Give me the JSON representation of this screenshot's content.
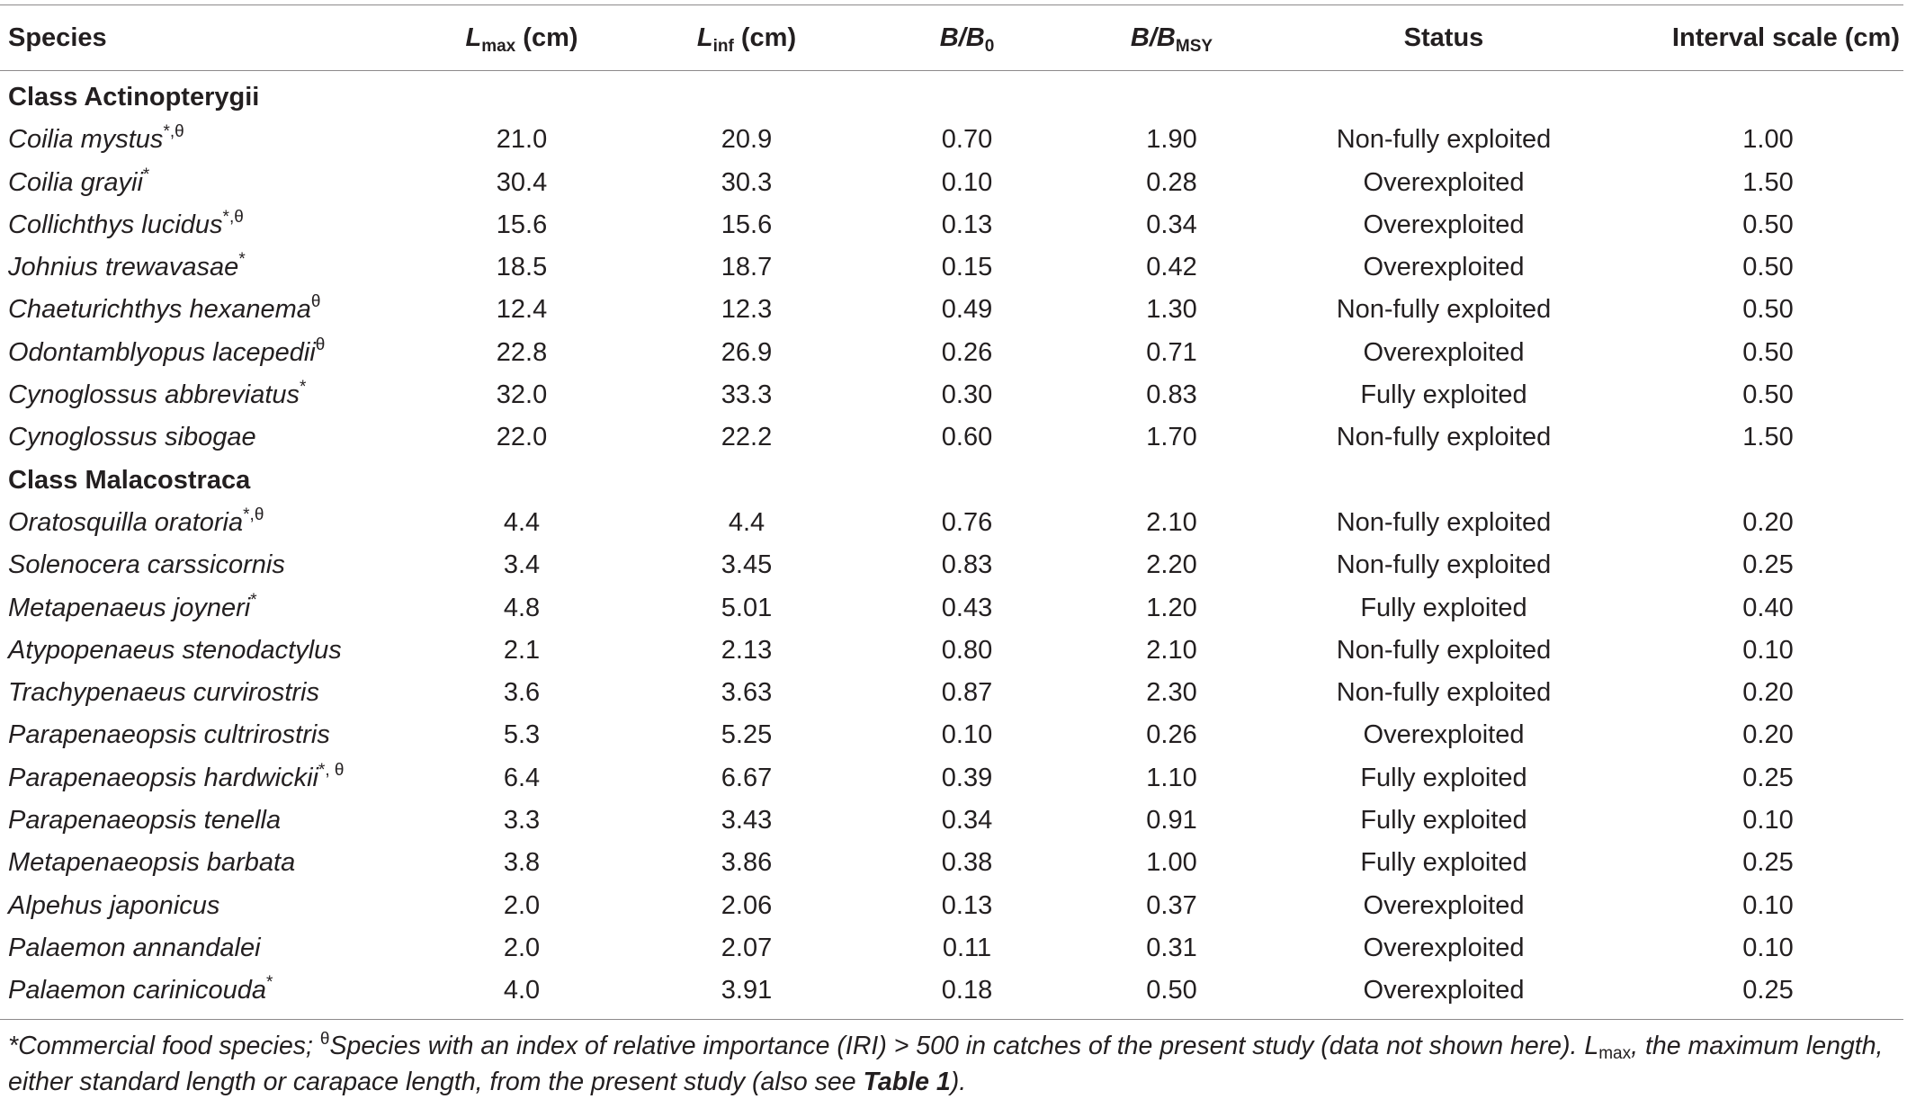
{
  "table": {
    "headers": {
      "species": "Species",
      "lmax_main": "L",
      "lmax_sub": "max",
      "lmax_unit": "(cm)",
      "linf_main": "L",
      "linf_sub": "inf",
      "linf_unit": "(cm)",
      "bb0_main": "B/B",
      "bb0_sub": "0",
      "bbmsy_main": "B/B",
      "bbmsy_sub": "MSY",
      "status": "Status",
      "interval": "Interval scale (cm)"
    },
    "groups": [
      {
        "label": "Class Actinopterygii",
        "rows": [
          {
            "species": "Coilia mystus",
            "mark": "*,θ",
            "lmax": "21.0",
            "linf": "20.9",
            "bb0": "0.70",
            "bbmsy": "1.90",
            "status": "Non-fully exploited",
            "interval": "1.00"
          },
          {
            "species": "Coilia grayii",
            "mark": "*",
            "lmax": "30.4",
            "linf": "30.3",
            "bb0": "0.10",
            "bbmsy": "0.28",
            "status": "Overexploited",
            "interval": "1.50"
          },
          {
            "species": "Collichthys lucidus",
            "mark": "*,θ",
            "lmax": "15.6",
            "linf": "15.6",
            "bb0": "0.13",
            "bbmsy": "0.34",
            "status": "Overexploited",
            "interval": "0.50"
          },
          {
            "species": "Johnius trewavasae",
            "mark": "*",
            "lmax": "18.5",
            "linf": "18.7",
            "bb0": "0.15",
            "bbmsy": "0.42",
            "status": "Overexploited",
            "interval": "0.50"
          },
          {
            "species": "Chaeturichthys hexanema",
            "mark": "θ",
            "lmax": "12.4",
            "linf": "12.3",
            "bb0": "0.49",
            "bbmsy": "1.30",
            "status": "Non-fully exploited",
            "interval": "0.50"
          },
          {
            "species": "Odontamblyopus lacepedii",
            "mark": "θ",
            "lmax": "22.8",
            "linf": "26.9",
            "bb0": "0.26",
            "bbmsy": "0.71",
            "status": "Overexploited",
            "interval": "0.50"
          },
          {
            "species": "Cynoglossus abbreviatus",
            "mark": "*",
            "lmax": "32.0",
            "linf": "33.3",
            "bb0": "0.30",
            "bbmsy": "0.83",
            "status": "Fully exploited",
            "interval": "0.50"
          },
          {
            "species": "Cynoglossus sibogae",
            "mark": "",
            "lmax": "22.0",
            "linf": "22.2",
            "bb0": "0.60",
            "bbmsy": "1.70",
            "status": "Non-fully exploited",
            "interval": "1.50"
          }
        ]
      },
      {
        "label": "Class Malacostraca",
        "rows": [
          {
            "species": "Oratosquilla oratoria",
            "mark": "*,θ",
            "lmax": "4.4",
            "linf": "4.4",
            "bb0": "0.76",
            "bbmsy": "2.10",
            "status": "Non-fully exploited",
            "interval": "0.20"
          },
          {
            "species": "Solenocera carssicornis",
            "mark": "",
            "lmax": "3.4",
            "linf": "3.45",
            "bb0": "0.83",
            "bbmsy": "2.20",
            "status": "Non-fully exploited",
            "interval": "0.25"
          },
          {
            "species": "Metapenaeus joyneri",
            "mark": "*",
            "lmax": "4.8",
            "linf": "5.01",
            "bb0": "0.43",
            "bbmsy": "1.20",
            "status": "Fully exploited",
            "interval": "0.40"
          },
          {
            "species": "Atypopenaeus stenodactylus",
            "mark": "",
            "lmax": "2.1",
            "linf": "2.13",
            "bb0": "0.80",
            "bbmsy": "2.10",
            "status": "Non-fully exploited",
            "interval": "0.10"
          },
          {
            "species": "Trachypenaeus curvirostris",
            "mark": "",
            "lmax": "3.6",
            "linf": "3.63",
            "bb0": "0.87",
            "bbmsy": "2.30",
            "status": "Non-fully exploited",
            "interval": "0.20"
          },
          {
            "species": "Parapenaeopsis cultrirostris",
            "mark": "",
            "lmax": "5.3",
            "linf": "5.25",
            "bb0": "0.10",
            "bbmsy": "0.26",
            "status": "Overexploited",
            "interval": "0.20"
          },
          {
            "species": "Parapenaeopsis hardwickii",
            "mark": "*, θ",
            "lmax": "6.4",
            "linf": "6.67",
            "bb0": "0.39",
            "bbmsy": "1.10",
            "status": "Fully exploited",
            "interval": "0.25"
          },
          {
            "species": "Parapenaeopsis tenella",
            "mark": "",
            "lmax": "3.3",
            "linf": "3.43",
            "bb0": "0.34",
            "bbmsy": "0.91",
            "status": "Fully exploited",
            "interval": "0.10"
          },
          {
            "species": "Metapenaeopsis barbata",
            "mark": "",
            "lmax": "3.8",
            "linf": "3.86",
            "bb0": "0.38",
            "bbmsy": "1.00",
            "status": "Fully exploited",
            "interval": "0.25"
          },
          {
            "species": "Alpehus japonicus",
            "mark": "",
            "lmax": "2.0",
            "linf": "2.06",
            "bb0": "0.13",
            "bbmsy": "0.37",
            "status": "Overexploited",
            "interval": "0.10"
          },
          {
            "species": "Palaemon annandalei",
            "mark": "",
            "lmax": "2.0",
            "linf": "2.07",
            "bb0": "0.11",
            "bbmsy": "0.31",
            "status": "Overexploited",
            "interval": "0.10"
          },
          {
            "species": "Palaemon carinicouda",
            "mark": "*",
            "lmax": "4.0",
            "linf": "3.91",
            "bb0": "0.18",
            "bbmsy": "0.50",
            "status": "Overexploited",
            "interval": "0.25"
          }
        ]
      }
    ]
  },
  "footnote": {
    "p1": "*Commercial food species; ",
    "theta": "θ",
    "p2": "Species with an index of relative importance (IRI) > 500 in catches of the present study (data not shown here). L",
    "lsub": "max",
    "p3": ", the maximum length, either standard length or carapace length, from the present study (also see ",
    "ref": "Table 1",
    "p4": ")."
  }
}
